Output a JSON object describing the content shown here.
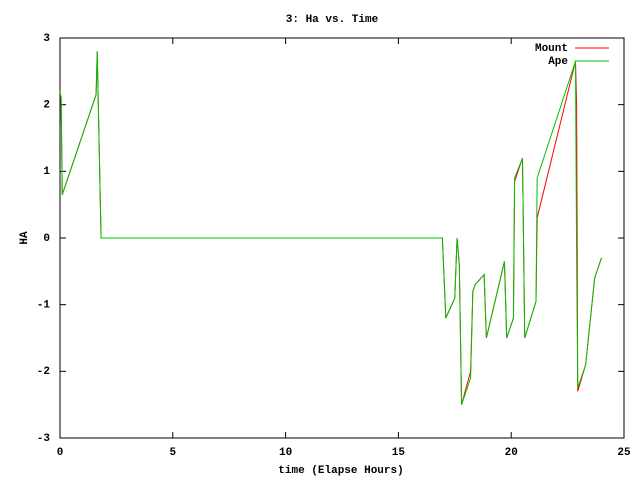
{
  "chart_data": {
    "type": "line",
    "title": "3: Ha vs. Time",
    "x_label": "time (Elapse Hours)",
    "y_label": "HA",
    "x": [
      0,
      0.05,
      0.1,
      1.6,
      1.65,
      1.82,
      16.95,
      17.0,
      17.1,
      17.5,
      17.6,
      17.7,
      17.8,
      18.2,
      18.3,
      18.4,
      18.8,
      18.9,
      19.7,
      19.8,
      20.1,
      20.15,
      20.5,
      20.6,
      21.1,
      21.15,
      22.85,
      22.9,
      22.95,
      23.3,
      23.7,
      24.0
    ],
    "series": [
      {
        "name": "Mount",
        "color": "#ff0000",
        "values": [
          2.2,
          2.1,
          0.65,
          2.15,
          2.8,
          0,
          0,
          -0.4,
          -1.2,
          -0.9,
          0,
          -0.4,
          -2.5,
          -2.0,
          -0.8,
          -0.7,
          -0.55,
          -1.5,
          -0.35,
          -1.5,
          -1.2,
          0.85,
          1.2,
          -1.5,
          -0.95,
          0.3,
          2.65,
          2.0,
          -2.3,
          -1.9,
          -0.6,
          -0.3
        ]
      },
      {
        "name": "Ape",
        "color": "#00c000",
        "values": [
          2.2,
          2.1,
          0.65,
          2.15,
          2.8,
          0,
          0,
          -0.4,
          -1.2,
          -0.9,
          0,
          -0.4,
          -2.5,
          -2.1,
          -0.8,
          -0.7,
          -0.55,
          -1.5,
          -0.35,
          -1.5,
          -1.2,
          0.9,
          1.2,
          -1.5,
          -0.95,
          0.9,
          2.65,
          -0.3,
          -2.25,
          -1.9,
          -0.6,
          -0.3
        ]
      }
    ],
    "xlim": [
      0,
      25
    ],
    "xticks": [
      0,
      5,
      10,
      15,
      20,
      25
    ],
    "ylim": [
      -3,
      3
    ],
    "yticks": [
      -3,
      -2,
      -1,
      0,
      1,
      2,
      3
    ],
    "legend": "top-right",
    "grid": false
  }
}
